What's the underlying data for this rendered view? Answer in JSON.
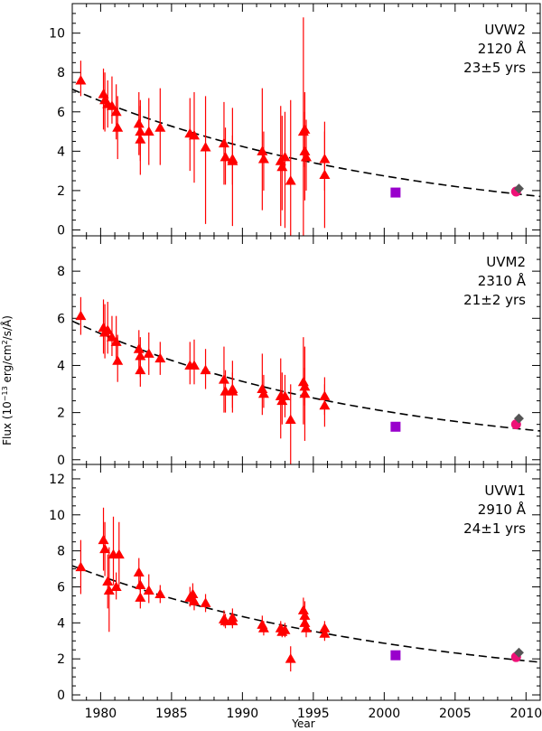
{
  "chart_data": {
    "type": "scatter",
    "xlabel": "Year",
    "ylabel": "Flux (10⁻¹³ erg/cm²/s/Å)",
    "ylabel_parts": {
      "pre": "Flux (10",
      "exp1": "−13",
      "mid1": " erg/cm",
      "exp2": "2",
      "post": "/s/Å)"
    },
    "xlim": [
      1978,
      2011
    ],
    "xticks": [
      1980,
      1985,
      1990,
      1995,
      2000,
      2005,
      2010
    ],
    "colors": {
      "triangles": "#ff0000",
      "errorbars": "#ff0000",
      "square": "#9900cc",
      "circle": "#ee1177",
      "diamond": "#555555",
      "fit": "#000000"
    },
    "panels": [
      {
        "name": "UVW2",
        "label_lines": [
          "UVW2",
          "2120 Å",
          "23±5 yrs"
        ],
        "ylim": [
          -0.3,
          11.5
        ],
        "yticks": [
          0,
          2,
          4,
          6,
          8,
          10
        ],
        "fit": {
          "a": 6.55,
          "x0": 1980,
          "tau": 23
        },
        "triangles": [
          {
            "x": 1978.6,
            "y": 7.6,
            "lo": 6.8,
            "hi": 8.6
          },
          {
            "x": 1980.2,
            "y": 6.9,
            "lo": 5.1,
            "hi": 8.2
          },
          {
            "x": 1980.3,
            "y": 6.6,
            "lo": 5.0,
            "hi": 8.0
          },
          {
            "x": 1980.5,
            "y": 6.4,
            "lo": 5.2,
            "hi": 7.6
          },
          {
            "x": 1980.8,
            "y": 6.3,
            "lo": 5.4,
            "hi": 7.8
          },
          {
            "x": 1981.1,
            "y": 6.0,
            "lo": 4.6,
            "hi": 7.4
          },
          {
            "x": 1981.2,
            "y": 5.2,
            "lo": 3.6,
            "hi": 6.8
          },
          {
            "x": 1982.7,
            "y": 5.4,
            "lo": 3.8,
            "hi": 7.0
          },
          {
            "x": 1982.8,
            "y": 5.0,
            "lo": 3.5,
            "hi": 6.6
          },
          {
            "x": 1982.8,
            "y": 4.6,
            "lo": 2.8,
            "hi": 6.3
          },
          {
            "x": 1983.4,
            "y": 5.0,
            "lo": 3.3,
            "hi": 6.7
          },
          {
            "x": 1984.2,
            "y": 5.2,
            "lo": 3.3,
            "hi": 7.2
          },
          {
            "x": 1986.3,
            "y": 4.9,
            "lo": 3.0,
            "hi": 6.7
          },
          {
            "x": 1986.6,
            "y": 4.8,
            "lo": 2.4,
            "hi": 7.0
          },
          {
            "x": 1987.4,
            "y": 4.2,
            "lo": 0.3,
            "hi": 6.8
          },
          {
            "x": 1988.7,
            "y": 4.4,
            "lo": 2.3,
            "hi": 6.5
          },
          {
            "x": 1988.8,
            "y": 3.7,
            "lo": 2.3,
            "hi": 5.2
          },
          {
            "x": 1989.3,
            "y": 3.6,
            "lo": 0.2,
            "hi": 6.2
          },
          {
            "x": 1989.3,
            "y": 3.5,
            "lo": 2.3,
            "hi": 4.8
          },
          {
            "x": 1991.4,
            "y": 4.0,
            "lo": 1.0,
            "hi": 7.2
          },
          {
            "x": 1991.5,
            "y": 3.6,
            "lo": 2.0,
            "hi": 5.0
          },
          {
            "x": 1992.7,
            "y": 3.5,
            "lo": 0.2,
            "hi": 6.3
          },
          {
            "x": 1992.8,
            "y": 3.2,
            "lo": 1.0,
            "hi": 5.8
          },
          {
            "x": 1993.0,
            "y": 3.7,
            "lo": 0.1,
            "hi": 6.0
          },
          {
            "x": 1993.4,
            "y": 2.5,
            "lo": -0.3,
            "hi": 6.6
          },
          {
            "x": 1994.3,
            "y": 5.0,
            "lo": -0.3,
            "hi": 10.8
          },
          {
            "x": 1994.4,
            "y": 5.1,
            "lo": 3.2,
            "hi": 7.0
          },
          {
            "x": 1994.4,
            "y": 4.0,
            "lo": 1.5,
            "hi": 6.0
          },
          {
            "x": 1994.5,
            "y": 3.7,
            "lo": 2.0,
            "hi": 5.6
          },
          {
            "x": 1995.8,
            "y": 3.6,
            "lo": 2.0,
            "hi": 5.5
          },
          {
            "x": 1995.8,
            "y": 2.8,
            "lo": 0.1,
            "hi": 5.0
          }
        ],
        "square": {
          "x": 2000.8,
          "y": 1.9
        },
        "circle": {
          "x": 2009.3,
          "y": 1.95
        },
        "diamond": {
          "x": 2009.5,
          "y": 2.1
        }
      },
      {
        "name": "UVM2",
        "label_lines": [
          "UVM2",
          "2310 Å",
          "21±2 yrs"
        ],
        "ylim": [
          -0.2,
          9.5
        ],
        "yticks": [
          0,
          2,
          4,
          6,
          8
        ],
        "fit": {
          "a": 5.35,
          "x0": 1980,
          "tau": 21
        },
        "triangles": [
          {
            "x": 1978.6,
            "y": 6.1,
            "lo": 5.3,
            "hi": 6.9
          },
          {
            "x": 1980.2,
            "y": 5.6,
            "lo": 4.5,
            "hi": 6.8
          },
          {
            "x": 1980.3,
            "y": 5.4,
            "lo": 4.3,
            "hi": 6.6
          },
          {
            "x": 1980.5,
            "y": 5.5,
            "lo": 4.5,
            "hi": 6.7
          },
          {
            "x": 1980.8,
            "y": 5.2,
            "lo": 4.4,
            "hi": 6.1
          },
          {
            "x": 1981.1,
            "y": 5.0,
            "lo": 4.2,
            "hi": 6.1
          },
          {
            "x": 1981.2,
            "y": 4.2,
            "lo": 3.3,
            "hi": 5.3
          },
          {
            "x": 1982.7,
            "y": 4.7,
            "lo": 3.7,
            "hi": 5.5
          },
          {
            "x": 1982.8,
            "y": 4.4,
            "lo": 3.5,
            "hi": 5.2
          },
          {
            "x": 1982.8,
            "y": 3.8,
            "lo": 3.1,
            "hi": 4.5
          },
          {
            "x": 1983.4,
            "y": 4.5,
            "lo": 3.6,
            "hi": 5.4
          },
          {
            "x": 1984.2,
            "y": 4.3,
            "lo": 3.6,
            "hi": 5.0
          },
          {
            "x": 1986.3,
            "y": 4.0,
            "lo": 3.2,
            "hi": 5.0
          },
          {
            "x": 1986.6,
            "y": 4.0,
            "lo": 3.2,
            "hi": 5.1
          },
          {
            "x": 1987.4,
            "y": 3.8,
            "lo": 3.0,
            "hi": 4.7
          },
          {
            "x": 1988.7,
            "y": 3.4,
            "lo": 2.0,
            "hi": 4.8
          },
          {
            "x": 1988.8,
            "y": 2.9,
            "lo": 2.0,
            "hi": 3.8
          },
          {
            "x": 1989.3,
            "y": 3.0,
            "lo": 2.0,
            "hi": 4.2
          },
          {
            "x": 1989.3,
            "y": 2.9,
            "lo": 2.2,
            "hi": 3.7
          },
          {
            "x": 1991.4,
            "y": 3.0,
            "lo": 1.9,
            "hi": 4.5
          },
          {
            "x": 1991.5,
            "y": 2.8,
            "lo": 2.2,
            "hi": 3.6
          },
          {
            "x": 1992.7,
            "y": 2.7,
            "lo": 0.9,
            "hi": 4.3
          },
          {
            "x": 1992.8,
            "y": 2.5,
            "lo": 1.5,
            "hi": 3.7
          },
          {
            "x": 1993.0,
            "y": 2.7,
            "lo": 1.8,
            "hi": 3.6
          },
          {
            "x": 1993.4,
            "y": 1.7,
            "lo": -0.2,
            "hi": 3.2
          },
          {
            "x": 1994.3,
            "y": 3.3,
            "lo": 1.5,
            "hi": 5.2
          },
          {
            "x": 1994.4,
            "y": 3.1,
            "lo": 2.3,
            "hi": 3.9
          },
          {
            "x": 1994.4,
            "y": 2.8,
            "lo": 0.8,
            "hi": 4.8
          },
          {
            "x": 1995.8,
            "y": 2.7,
            "lo": 1.9,
            "hi": 3.5
          },
          {
            "x": 1995.8,
            "y": 2.3,
            "lo": 1.4,
            "hi": 3.2
          }
        ],
        "square": {
          "x": 2000.8,
          "y": 1.4
        },
        "circle": {
          "x": 2009.3,
          "y": 1.5
        },
        "diamond": {
          "x": 2009.5,
          "y": 1.75
        }
      },
      {
        "name": "UVW1",
        "label_lines": [
          "UVW1",
          "2910 Å",
          "24±1 yrs"
        ],
        "ylim": [
          -0.3,
          12.8
        ],
        "yticks": [
          0,
          2,
          4,
          6,
          8,
          10,
          12
        ],
        "fit": {
          "a": 6.6,
          "x0": 1980,
          "tau": 24
        },
        "triangles": [
          {
            "x": 1978.6,
            "y": 7.1,
            "lo": 5.6,
            "hi": 8.6
          },
          {
            "x": 1980.2,
            "y": 8.6,
            "lo": 6.9,
            "hi": 10.4
          },
          {
            "x": 1980.3,
            "y": 8.1,
            "lo": 6.6,
            "hi": 9.6
          },
          {
            "x": 1980.5,
            "y": 6.3,
            "lo": 4.8,
            "hi": 7.8
          },
          {
            "x": 1980.6,
            "y": 5.8,
            "lo": 3.5,
            "hi": 8.2
          },
          {
            "x": 1980.9,
            "y": 7.8,
            "lo": 6.1,
            "hi": 9.9
          },
          {
            "x": 1981.1,
            "y": 6.0,
            "lo": 5.3,
            "hi": 6.8
          },
          {
            "x": 1981.3,
            "y": 7.8,
            "lo": 6.0,
            "hi": 9.6
          },
          {
            "x": 1982.7,
            "y": 6.8,
            "lo": 6.0,
            "hi": 7.6
          },
          {
            "x": 1982.8,
            "y": 6.1,
            "lo": 5.4,
            "hi": 6.8
          },
          {
            "x": 1982.8,
            "y": 5.4,
            "lo": 4.8,
            "hi": 6.0
          },
          {
            "x": 1983.4,
            "y": 5.8,
            "lo": 5.1,
            "hi": 6.7
          },
          {
            "x": 1984.2,
            "y": 5.6,
            "lo": 5.1,
            "hi": 6.1
          },
          {
            "x": 1986.3,
            "y": 5.4,
            "lo": 4.9,
            "hi": 6.0
          },
          {
            "x": 1986.5,
            "y": 5.6,
            "lo": 5.0,
            "hi": 6.2
          },
          {
            "x": 1986.6,
            "y": 5.2,
            "lo": 4.7,
            "hi": 5.7
          },
          {
            "x": 1987.4,
            "y": 5.1,
            "lo": 4.6,
            "hi": 5.6
          },
          {
            "x": 1988.7,
            "y": 4.2,
            "lo": 3.8,
            "hi": 4.7
          },
          {
            "x": 1988.8,
            "y": 4.1,
            "lo": 3.7,
            "hi": 4.5
          },
          {
            "x": 1989.3,
            "y": 4.3,
            "lo": 3.8,
            "hi": 4.8
          },
          {
            "x": 1989.3,
            "y": 4.1,
            "lo": 3.7,
            "hi": 4.5
          },
          {
            "x": 1991.4,
            "y": 3.9,
            "lo": 3.5,
            "hi": 4.4
          },
          {
            "x": 1991.5,
            "y": 3.7,
            "lo": 3.3,
            "hi": 4.1
          },
          {
            "x": 1992.7,
            "y": 3.7,
            "lo": 3.3,
            "hi": 4.1
          },
          {
            "x": 1992.8,
            "y": 3.5,
            "lo": 3.2,
            "hi": 3.9
          },
          {
            "x": 1993.0,
            "y": 3.6,
            "lo": 3.2,
            "hi": 4.0
          },
          {
            "x": 1993.4,
            "y": 2.0,
            "lo": 1.3,
            "hi": 2.7
          },
          {
            "x": 1994.3,
            "y": 4.7,
            "lo": 4.0,
            "hi": 5.4
          },
          {
            "x": 1994.4,
            "y": 4.4,
            "lo": 3.6,
            "hi": 5.2
          },
          {
            "x": 1994.4,
            "y": 4.0,
            "lo": 3.5,
            "hi": 4.6
          },
          {
            "x": 1994.5,
            "y": 3.7,
            "lo": 3.2,
            "hi": 4.2
          },
          {
            "x": 1995.8,
            "y": 3.7,
            "lo": 3.3,
            "hi": 4.1
          },
          {
            "x": 1995.8,
            "y": 3.4,
            "lo": 3.0,
            "hi": 3.8
          }
        ],
        "square": {
          "x": 2000.8,
          "y": 2.2
        },
        "circle": {
          "x": 2009.3,
          "y": 2.1
        },
        "diamond": {
          "x": 2009.5,
          "y": 2.35
        }
      }
    ]
  }
}
